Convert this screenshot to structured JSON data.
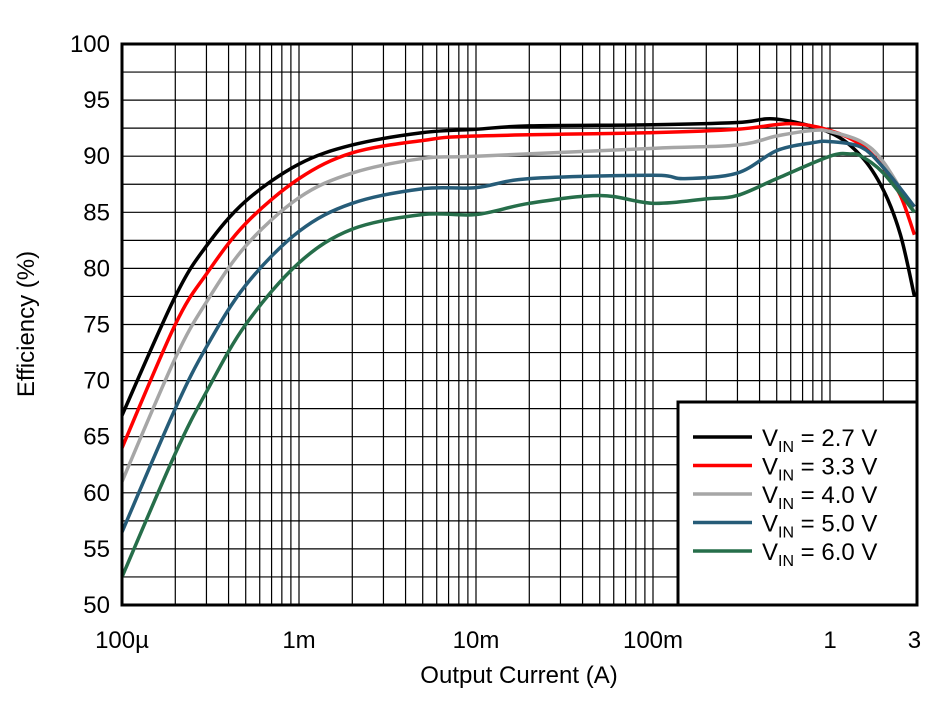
{
  "chart_data": {
    "type": "line",
    "title": "",
    "xlabel": "Output Current (A)",
    "ylabel": "Efficiency (%)",
    "x_scale": "log",
    "xlim": [
      0.0001,
      3
    ],
    "ylim": [
      50,
      100
    ],
    "grid": true,
    "legend_placement": "bottom-right",
    "x_ticks": [
      {
        "value": 0.0001,
        "label": "100µ"
      },
      {
        "value": 0.001,
        "label": "1m"
      },
      {
        "value": 0.01,
        "label": "10m"
      },
      {
        "value": 0.1,
        "label": "100m"
      },
      {
        "value": 1,
        "label": "1"
      },
      {
        "value": 3,
        "label": "3"
      }
    ],
    "y_ticks": [
      50,
      55,
      60,
      65,
      70,
      75,
      80,
      85,
      90,
      95,
      100
    ],
    "series": [
      {
        "name": "VIN = 2.7 V",
        "label_main": "V",
        "label_sub": "IN",
        "label_rest": " = 2.7 V",
        "color": "#000000",
        "x": [
          0.0001,
          0.0002,
          0.0003,
          0.0005,
          0.001,
          0.002,
          0.005,
          0.01,
          0.02,
          0.1,
          0.3,
          0.5,
          1,
          1.5,
          2,
          2.5,
          3
        ],
        "y": [
          66.9,
          77.5,
          82,
          86,
          89.3,
          91,
          92.1,
          92.4,
          92.7,
          92.8,
          93,
          93.3,
          92.1,
          90,
          87,
          83,
          77.5
        ]
      },
      {
        "name": "VIN = 3.3 V",
        "label_main": "V",
        "label_sub": "IN",
        "label_rest": " = 3.3 V",
        "color": "#ff0000",
        "x": [
          0.0001,
          0.0002,
          0.0003,
          0.0005,
          0.001,
          0.002,
          0.005,
          0.01,
          0.1,
          0.3,
          0.6,
          1,
          1.5,
          2,
          2.5,
          3
        ],
        "y": [
          64,
          75,
          79.5,
          84,
          88,
          90.3,
          91.4,
          91.8,
          92.1,
          92.4,
          92.9,
          92.3,
          91,
          89,
          86.5,
          83
        ]
      },
      {
        "name": "VIN = 4.0 V",
        "label_main": "V",
        "label_sub": "IN",
        "label_rest": " = 4.0 V",
        "color": "#a6a6a6",
        "x": [
          0.0001,
          0.0002,
          0.0003,
          0.0005,
          0.001,
          0.002,
          0.005,
          0.01,
          0.1,
          0.3,
          0.5,
          0.8,
          1,
          1.5,
          2,
          3
        ],
        "y": [
          61,
          72,
          77,
          82,
          86.3,
          88.5,
          89.8,
          90,
          90.7,
          91,
          91.8,
          92.3,
          92.2,
          91.3,
          89.5,
          85
        ]
      },
      {
        "name": "VIN = 5.0 V",
        "label_main": "V",
        "label_sub": "IN",
        "label_rest": " = 5.0 V",
        "color": "#265c78",
        "x": [
          0.0001,
          0.0002,
          0.0003,
          0.0005,
          0.001,
          0.002,
          0.005,
          0.01,
          0.02,
          0.1,
          0.15,
          0.3,
          0.5,
          0.8,
          1,
          1.5,
          2,
          3
        ],
        "y": [
          56.5,
          67.5,
          73,
          78.5,
          83.3,
          85.8,
          87.1,
          87.2,
          88,
          88.3,
          88,
          88.5,
          90.5,
          91.2,
          91.3,
          90.8,
          89,
          85.5
        ]
      },
      {
        "name": "VIN = 6.0 V",
        "label_main": "V",
        "label_sub": "IN",
        "label_rest": " = 6.0 V",
        "color": "#266e4a",
        "x": [
          0.0001,
          0.0002,
          0.0003,
          0.0005,
          0.001,
          0.002,
          0.005,
          0.01,
          0.02,
          0.05,
          0.1,
          0.2,
          0.3,
          0.5,
          1,
          1.3,
          1.5,
          2,
          3
        ],
        "y": [
          52.5,
          63.5,
          69,
          75,
          80.5,
          83.5,
          84.8,
          84.8,
          85.8,
          86.5,
          85.8,
          86.2,
          86.5,
          88,
          90,
          90.2,
          90,
          88.5,
          85
        ]
      }
    ]
  }
}
